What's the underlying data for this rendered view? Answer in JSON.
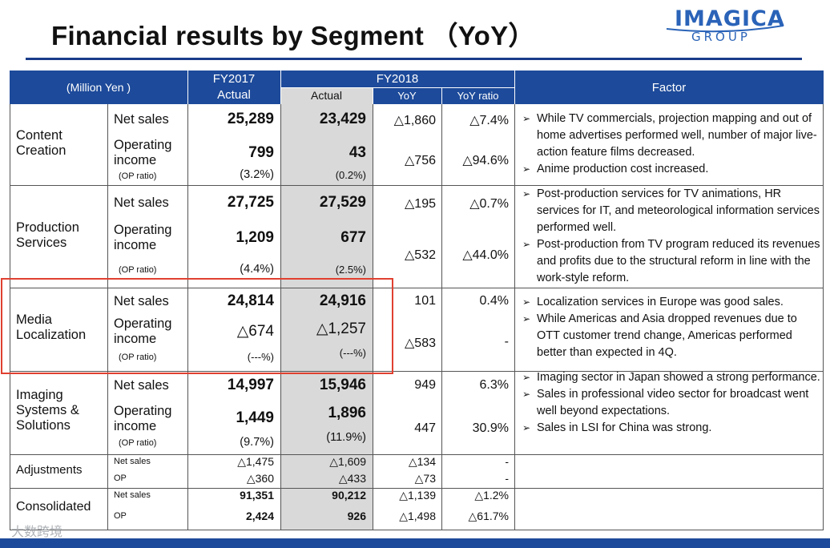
{
  "page": {
    "title": "Financial results by Segment （YoY）",
    "logo_text": "IMAGICA",
    "logo_sub": "GROUP",
    "watermark": "大数跨境"
  },
  "header": {
    "unit": "(Million Yen )",
    "fy2017": "FY2017",
    "fy2017_actual": "Actual",
    "fy2018": "FY2018",
    "fy2018_actual": "Actual",
    "yoy": "YoY",
    "yoy_ratio": "YoY ratio",
    "factor": "Factor"
  },
  "labels": {
    "net_sales": "Net sales",
    "operating_income_1": "Operating",
    "operating_income_2": "income",
    "op_ratio": "(OP ratio)",
    "op": "OP"
  },
  "segments": [
    {
      "name_1": "Content",
      "name_2": "Creation",
      "ns_2017": "25,289",
      "ns_2018": "23,429",
      "ns_yoy": "△1,860",
      "ns_ratio": "△7.4%",
      "oi_2017": "799",
      "oi_2018": "43",
      "oi_yoy": "△756",
      "oi_ratio": "△94.6%",
      "opr_2017": "(3.2%)",
      "opr_2018": "(0.2%)",
      "factors": [
        "While TV commercials, projection mapping and out of home advertises performed well, number of major live-action feature films decreased.",
        "Anime production cost  increased."
      ]
    },
    {
      "name_1": "Production",
      "name_2": "Services",
      "ns_2017": "27,725",
      "ns_2018": "27,529",
      "ns_yoy": "△195",
      "ns_ratio": "△0.7%",
      "oi_2017": "1,209",
      "oi_2018": "677",
      "oi_yoy": "△532",
      "oi_ratio": "△44.0%",
      "opr_2017": "(4.4%)",
      "opr_2018": "(2.5%)",
      "factors": [
        "Post-production services for TV animations, HR services for IT, and meteorological information services performed well.",
        "Post-production from TV program reduced its revenues and profits due to the structural reform in line with the work-style reform."
      ]
    },
    {
      "name_1": "Media",
      "name_2": "Localization",
      "ns_2017": "24,814",
      "ns_2018": "24,916",
      "ns_yoy": "101",
      "ns_ratio": "0.4%",
      "oi_2017": "△674",
      "oi_2018": "△1,257",
      "oi_yoy": "△583",
      "oi_ratio": "-",
      "opr_2017": "(---%)",
      "opr_2018": "(---%)",
      "factors": [
        "Localization services in Europe was good sales.",
        "While Americas and Asia dropped revenues due to OTT customer trend change, Americas performed better than expected in 4Q."
      ]
    },
    {
      "name_1": "Imaging",
      "name_2": "Systems &",
      "name_3": "Solutions",
      "ns_2017": "14,997",
      "ns_2018": "15,946",
      "ns_yoy": "949",
      "ns_ratio": "6.3%",
      "oi_2017": "1,449",
      "oi_2018": "1,896",
      "oi_yoy": "447",
      "oi_ratio": "30.9%",
      "opr_2017": "(9.7%)",
      "opr_2018": "(11.9%)",
      "factors": [
        "Imaging sector in Japan showed a strong performance.",
        "Sales in professional video sector for broadcast went well beyond expectations.",
        "Sales in LSI for China was strong."
      ]
    }
  ],
  "adjustments": {
    "name": "Adjustments",
    "ns_2017": "△1,475",
    "ns_2018": "△1,609",
    "ns_yoy": "△134",
    "ns_ratio": "-",
    "op_2017": "△360",
    "op_2018": "△433",
    "op_yoy": "△73",
    "op_ratio": "-"
  },
  "consolidated": {
    "name": "Consolidated",
    "ns_2017": "91,351",
    "ns_2018": "90,212",
    "ns_yoy": "△1,139",
    "ns_ratio": "△1.2%",
    "op_2017": "2,424",
    "op_2018": "926",
    "op_yoy": "△1,498",
    "op_ratio": "△61.7%"
  },
  "colors": {
    "header_blue": "#1d4a9a",
    "highlight_red": "#e04030",
    "shade_gray": "#d9d9d9"
  }
}
